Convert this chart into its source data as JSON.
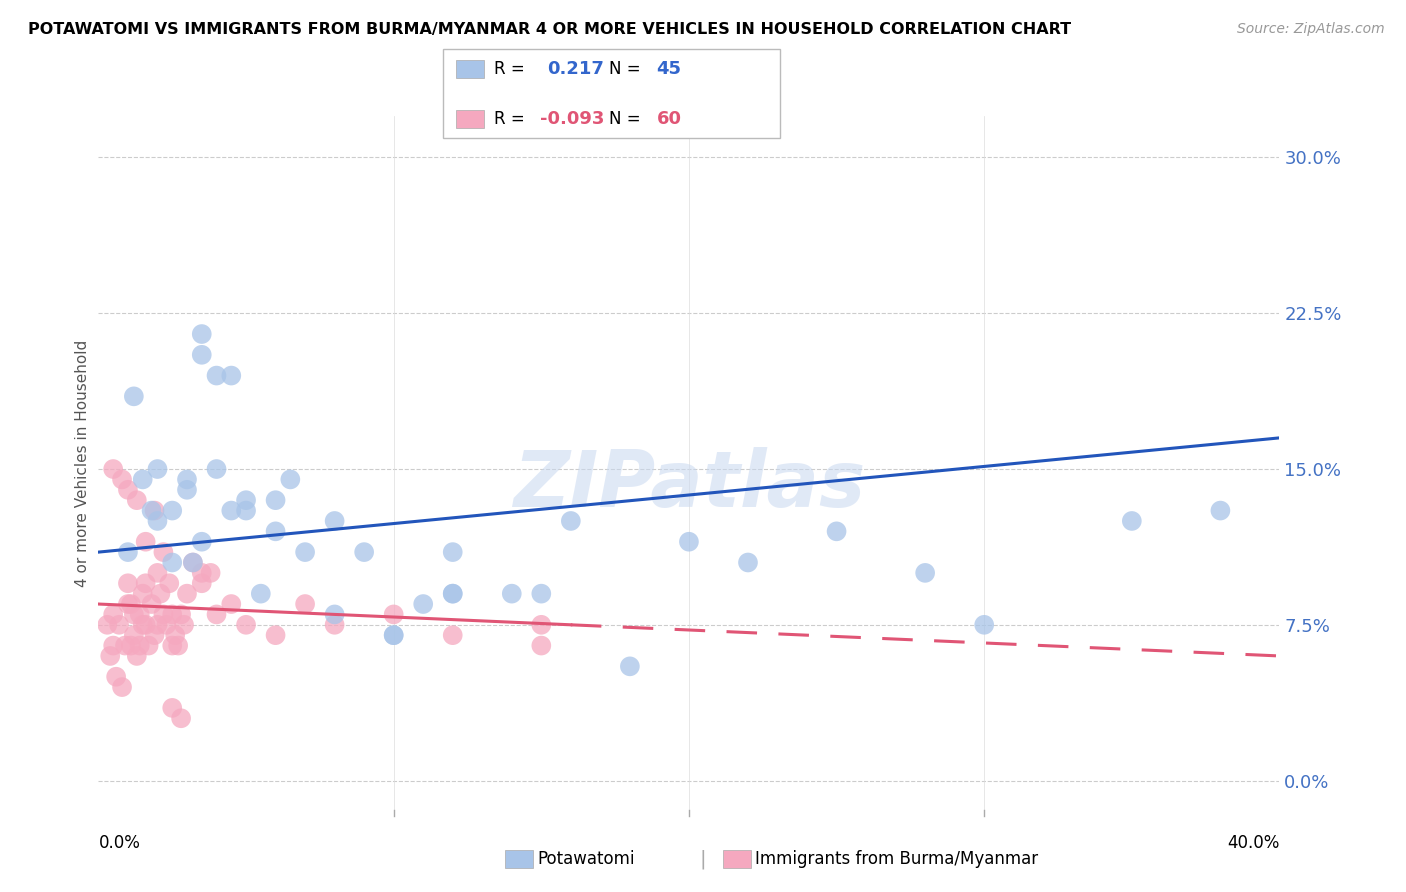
{
  "title": "POTAWATOMI VS IMMIGRANTS FROM BURMA/MYANMAR 4 OR MORE VEHICLES IN HOUSEHOLD CORRELATION CHART",
  "source": "Source: ZipAtlas.com",
  "ylabel": "4 or more Vehicles in Household",
  "ytick_values": [
    0.0,
    7.5,
    15.0,
    22.5,
    30.0
  ],
  "xlim": [
    0.0,
    40.0
  ],
  "ylim": [
    -1.5,
    32.0
  ],
  "legend_blue_R": "0.217",
  "legend_blue_N": "45",
  "legend_pink_R": "-0.093",
  "legend_pink_N": "60",
  "legend_label_blue": "Potawatomi",
  "legend_label_pink": "Immigrants from Burma/Myanmar",
  "blue_color": "#a8c4e8",
  "pink_color": "#f5a8bf",
  "blue_line_color": "#2255bb",
  "pink_line_color": "#e05575",
  "watermark": "ZIPatlas",
  "blue_scatter_x": [
    1.0,
    1.5,
    2.0,
    2.5,
    3.0,
    3.5,
    3.5,
    4.0,
    4.5,
    5.0,
    5.5,
    6.0,
    7.0,
    8.0,
    9.0,
    10.0,
    11.0,
    12.0,
    15.0,
    18.0,
    25.0,
    35.0,
    1.2,
    2.0,
    2.5,
    3.0,
    3.5,
    4.0,
    5.0,
    6.0,
    8.0,
    10.0,
    12.0,
    14.0,
    16.0,
    20.0,
    22.0,
    28.0,
    30.0,
    38.0,
    1.8,
    3.2,
    4.5,
    6.5,
    12.0
  ],
  "blue_scatter_y": [
    11.0,
    14.5,
    12.5,
    13.0,
    14.0,
    21.5,
    20.5,
    19.5,
    13.0,
    13.5,
    9.0,
    12.0,
    11.0,
    8.0,
    11.0,
    7.0,
    8.5,
    9.0,
    9.0,
    5.5,
    12.0,
    12.5,
    18.5,
    15.0,
    10.5,
    14.5,
    11.5,
    15.0,
    13.0,
    13.5,
    12.5,
    7.0,
    9.0,
    9.0,
    12.5,
    11.5,
    10.5,
    10.0,
    7.5,
    13.0,
    13.0,
    10.5,
    19.5,
    14.5,
    11.0
  ],
  "pink_scatter_x": [
    0.3,
    0.4,
    0.5,
    0.5,
    0.6,
    0.7,
    0.8,
    0.9,
    1.0,
    1.0,
    1.1,
    1.1,
    1.2,
    1.2,
    1.3,
    1.4,
    1.4,
    1.5,
    1.5,
    1.6,
    1.6,
    1.7,
    1.8,
    1.9,
    2.0,
    2.0,
    2.1,
    2.2,
    2.3,
    2.4,
    2.5,
    2.5,
    2.6,
    2.7,
    2.8,
    2.9,
    3.0,
    3.2,
    3.5,
    3.8,
    4.0,
    4.5,
    5.0,
    6.0,
    7.0,
    8.0,
    10.0,
    12.0,
    15.0,
    0.5,
    0.8,
    1.0,
    1.3,
    1.6,
    1.9,
    2.2,
    2.5,
    2.8,
    3.5,
    15.0
  ],
  "pink_scatter_y": [
    7.5,
    6.0,
    6.5,
    8.0,
    5.0,
    7.5,
    4.5,
    6.5,
    8.5,
    9.5,
    8.5,
    6.5,
    7.0,
    8.0,
    6.0,
    8.0,
    6.5,
    9.0,
    7.5,
    7.5,
    9.5,
    6.5,
    8.5,
    7.0,
    10.0,
    7.5,
    9.0,
    8.0,
    7.5,
    9.5,
    8.0,
    6.5,
    7.0,
    6.5,
    8.0,
    7.5,
    9.0,
    10.5,
    10.0,
    10.0,
    8.0,
    8.5,
    7.5,
    7.0,
    8.5,
    7.5,
    8.0,
    7.0,
    7.5,
    15.0,
    14.5,
    14.0,
    13.5,
    11.5,
    13.0,
    11.0,
    3.5,
    3.0,
    9.5,
    6.5
  ],
  "blue_line_x0": 0.0,
  "blue_line_y0": 11.0,
  "blue_line_x1": 40.0,
  "blue_line_y1": 16.5,
  "pink_line_x0": 0.0,
  "pink_line_y0": 8.5,
  "pink_line_x1": 40.0,
  "pink_line_y1": 6.0,
  "pink_solid_end_x": 16.0
}
